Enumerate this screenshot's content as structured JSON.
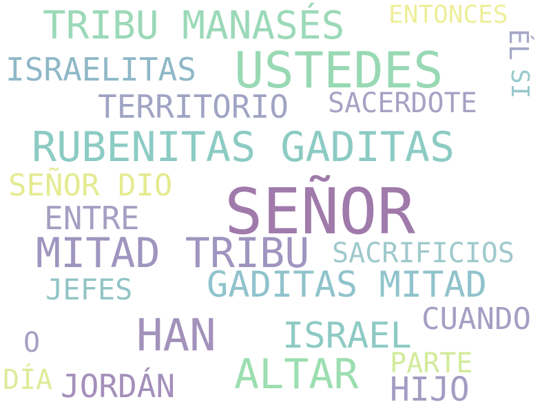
{
  "words": {
    "senor": {
      "text": "SEÑOR",
      "color": "#a07aab"
    },
    "ustedes": {
      "text": "USTEDES",
      "color": "#98d9b4"
    },
    "rubenitas_gaditas": {
      "text": "RUBENITAS GADITAS",
      "color": "#8ccbc4"
    },
    "mitad_tribu": {
      "text": "MITAD TRIBU",
      "color": "#9f95bf"
    },
    "han": {
      "text": "HAN",
      "color": "#a292bb"
    },
    "tribu_manases": {
      "text": "TRIBU MANASÉS",
      "color": "#9bd9b8"
    },
    "gaditas_mitad": {
      "text": "GADITAS MITAD",
      "color": "#90c3cc"
    },
    "altar": {
      "text": "ALTAR",
      "color": "#9cdeb0"
    },
    "israel": {
      "text": "ISRAEL",
      "color": "#8ecac4"
    },
    "israelitas": {
      "text": "ISRAELITAS",
      "color": "#8fb8c7"
    },
    "territorio": {
      "text": "TERRITORIO",
      "color": "#a0a4c4"
    },
    "senor_dio": {
      "text": "SEÑOR DIO",
      "color": "#e4eb90"
    },
    "entre": {
      "text": "ENTRE",
      "color": "#a59fc3"
    },
    "jordan": {
      "text": "JORDÁN",
      "color": "#a48fbb"
    },
    "cuando": {
      "text": "CUANDO",
      "color": "#a59ec4"
    },
    "hijo": {
      "text": "HIJO",
      "color": "#a39cc2"
    },
    "sacrificios": {
      "text": "SACRIFICIOS",
      "color": "#9fc9cc"
    },
    "sacerdote": {
      "text": "SACERDOTE",
      "color": "#a7a2c4"
    },
    "entonces": {
      "text": "ENTONCES",
      "color": "#eeee9a"
    },
    "jefes": {
      "text": "JEFES",
      "color": "#92c4c6"
    },
    "parte": {
      "text": "PARTE",
      "color": "#d2eb9a"
    },
    "dia": {
      "text": "DÍA",
      "color": "#dcec98"
    },
    "o": {
      "text": "O",
      "color": "#a69fc3"
    },
    "el": {
      "text": "ÉL",
      "color": "#a5a6c6"
    },
    "si": {
      "text": "SI",
      "color": "#98c9cc"
    }
  }
}
